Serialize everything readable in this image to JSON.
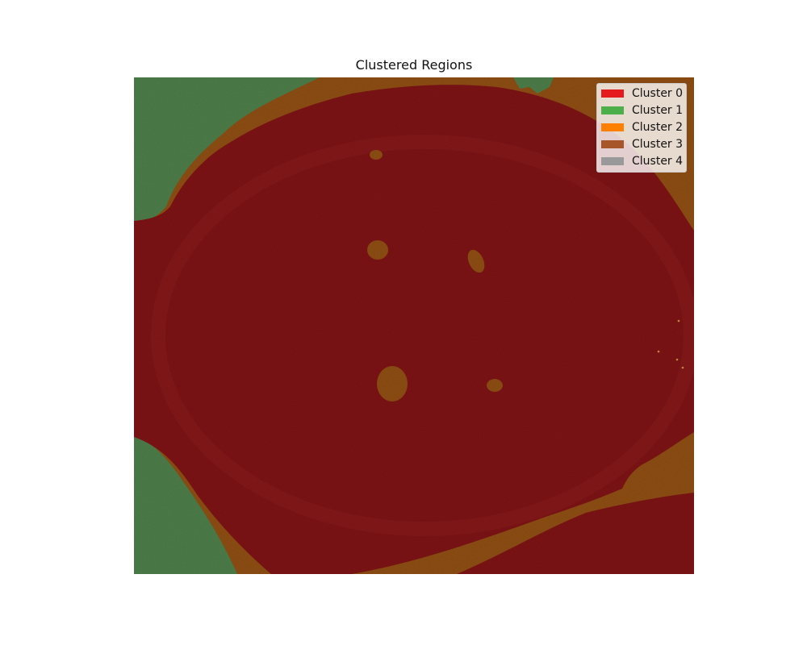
{
  "title": "Clustered Regions",
  "legend": {
    "placement": "top-right",
    "items": [
      {
        "label": "Cluster 0",
        "color": "#e41a1c"
      },
      {
        "label": "Cluster 1",
        "color": "#4daf4a"
      },
      {
        "label": "Cluster 2",
        "color": "#ff7f00"
      },
      {
        "label": "Cluster 3",
        "color": "#a65628"
      },
      {
        "label": "Cluster 4",
        "color": "#999999"
      }
    ]
  },
  "image": {
    "region_colors": {
      "cluster_0_overlay": "#7a1315",
      "cluster_1_overlay": "#4b7a47",
      "cluster_2_overlay": "#8a4c12",
      "cluster_3_overlay": "#7d4a1e"
    }
  }
}
